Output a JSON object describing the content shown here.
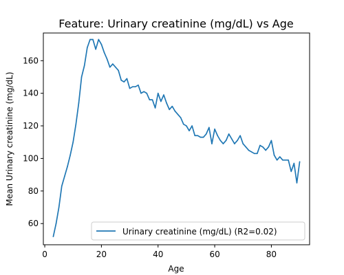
{
  "chart_data": {
    "type": "line",
    "title": "Feature: Urinary creatinine (mg/dL) vs Age",
    "xlabel": "Age",
    "ylabel": "Mean Urinary creatinine (mg/dL)",
    "xlim": [
      -0.5,
      93.5
    ],
    "ylim": [
      47,
      177
    ],
    "xticks": [
      0,
      20,
      40,
      60,
      80
    ],
    "yticks": [
      60,
      80,
      100,
      120,
      140,
      160
    ],
    "grid": false,
    "legend": "lower-right",
    "series": [
      {
        "name": "Urinary creatinine (mg/dL) (R2=0.02)",
        "color": "#1f77b4",
        "x": [
          3,
          4,
          5,
          6,
          7,
          8,
          9,
          10,
          11,
          12,
          13,
          14,
          15,
          16,
          17,
          18,
          19,
          20,
          21,
          22,
          23,
          24,
          25,
          26,
          27,
          28,
          29,
          30,
          31,
          32,
          33,
          34,
          35,
          36,
          37,
          38,
          39,
          40,
          41,
          42,
          43,
          44,
          45,
          46,
          47,
          48,
          49,
          50,
          51,
          52,
          53,
          54,
          55,
          56,
          57,
          58,
          59,
          60,
          61,
          62,
          63,
          64,
          65,
          66,
          67,
          68,
          69,
          70,
          71,
          72,
          73,
          74,
          75,
          76,
          77,
          78,
          79,
          80,
          81,
          82,
          83,
          84,
          85,
          86,
          87,
          88,
          89,
          90
        ],
        "y": [
          52,
          60,
          70,
          83,
          89,
          95,
          102,
          110,
          121,
          134,
          150,
          157,
          168,
          173,
          173,
          167,
          173,
          170,
          165,
          161,
          156,
          158,
          156,
          154,
          148,
          147,
          149,
          143,
          144,
          144,
          145,
          140,
          141,
          140,
          136,
          136,
          131,
          140,
          135,
          139,
          134,
          130,
          132,
          129,
          127,
          125,
          121,
          120,
          117,
          120,
          114,
          114,
          113,
          113,
          115,
          119,
          109,
          118,
          114,
          111,
          109,
          111,
          115,
          112,
          109,
          111,
          114,
          109,
          107,
          105,
          104,
          103,
          103,
          108,
          107,
          105,
          107,
          111,
          102,
          99,
          101,
          99,
          99,
          99,
          92,
          97,
          85,
          98
        ]
      }
    ]
  }
}
